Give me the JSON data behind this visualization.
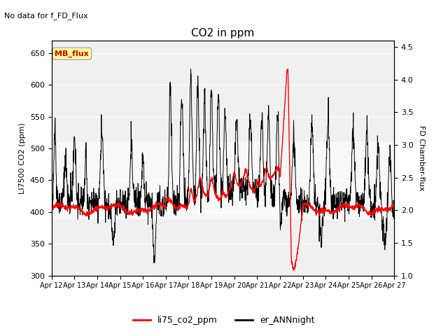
{
  "title": "CO2 in ppm",
  "title_fontsize": 11,
  "suptitle": "No data for f_FD_Flux",
  "ylabel_left": "LI7500 CO2 (ppm)",
  "ylabel_right": "FD Chamber-flux",
  "ylim_left": [
    300,
    670
  ],
  "ylim_right": [
    1.0,
    4.6
  ],
  "yticks_left": [
    300,
    350,
    400,
    450,
    500,
    550,
    600,
    650
  ],
  "yticks_right": [
    1.0,
    1.5,
    2.0,
    2.5,
    3.0,
    3.5,
    4.0,
    4.5
  ],
  "xticklabels": [
    "Apr 12",
    "Apr 13",
    "Apr 14",
    "Apr 15",
    "Apr 16",
    "Apr 17",
    "Apr 18",
    "Apr 19",
    "Apr 20",
    "Apr 21",
    "Apr 22",
    "Apr 23",
    "Apr 24",
    "Apr 25",
    "Apr 26",
    "Apr 27"
  ],
  "legend_entries": [
    "li75_co2_ppm",
    "er_ANNnight"
  ],
  "legend_colors": [
    "red",
    "black"
  ],
  "line_red_color": "#ff0000",
  "line_black_color": "#000000",
  "mb_flux_box_color": "#ffff99",
  "mb_flux_text_color": "#cc0000",
  "mb_flux_label": "MB_flux",
  "shading_color": "#e8e8e8",
  "shading_ylim": [
    390,
    510
  ],
  "background_color": "#ffffff",
  "plot_bg_color": "#f0f0f0",
  "n_points": 1500
}
